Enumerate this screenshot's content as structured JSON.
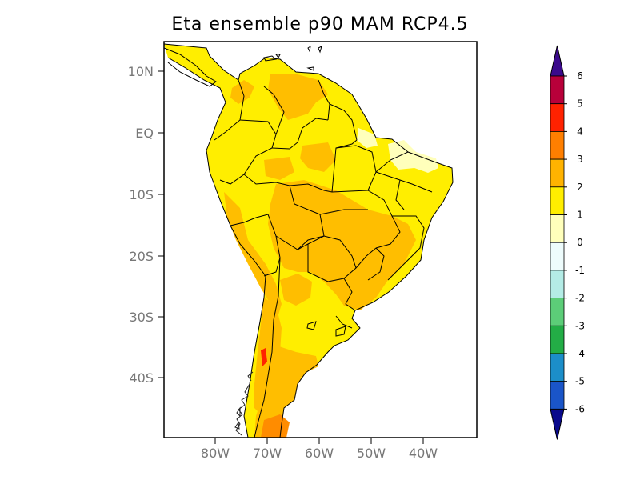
{
  "title": "Eta ensemble p90 MAM RCP4.5",
  "map": {
    "lat_ticks": [
      "10N",
      "EQ",
      "10S",
      "20S",
      "30S",
      "40S"
    ],
    "lon_ticks": [
      "80W",
      "70W",
      "60W",
      "50W",
      "40W"
    ],
    "region": "South America"
  },
  "colorbar": {
    "labels": [
      "6",
      "5",
      "4",
      "3",
      "2",
      "1",
      "0",
      "-1",
      "-2",
      "-3",
      "-4",
      "-5",
      "-6"
    ],
    "colors": [
      "#b8003a",
      "#ff2200",
      "#ff7f00",
      "#ffb300",
      "#ffee00",
      "#ffffbb",
      "#eefcfc",
      "#b4ece6",
      "#5ccd78",
      "#23ad46",
      "#1c8ec9",
      "#1a55c8"
    ],
    "top_arrow_color": "#3b0a8c",
    "bottom_arrow_color": "#0a0a8c"
  },
  "fill_colors": {
    "yellow": "#ffee00",
    "light_yellow": "#ffffbb",
    "orange": "#ffbe00",
    "dark_orange": "#ff8c00",
    "red": "#ff2200"
  }
}
